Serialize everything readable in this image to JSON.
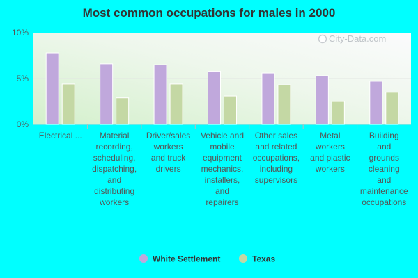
{
  "chart_data": {
    "type": "bar",
    "title": "Most common occupations for males in 2000",
    "categories": [
      "Electrical ...",
      "Material recording, scheduling, dispatching, and distributing workers",
      "Driver/sales workers and truck drivers",
      "Vehicle and mobile equipment mechanics, installers, and repairers",
      "Other sales and related occupations, including supervisors",
      "Metal workers and plastic workers",
      "Building and grounds cleaning and maintenance occupations"
    ],
    "category_lines": [
      [
        "Electrical ..."
      ],
      [
        "Material",
        "recording,",
        "scheduling,",
        "dispatching,",
        "and",
        "distributing",
        "workers"
      ],
      [
        "Driver/sales",
        "workers",
        "and truck",
        "drivers"
      ],
      [
        "Vehicle and",
        "mobile",
        "equipment",
        "mechanics,",
        "installers,",
        "and",
        "repairers"
      ],
      [
        "Other sales",
        "and related",
        "occupations,",
        "including",
        "supervisors"
      ],
      [
        "Metal",
        "workers",
        "and plastic",
        "workers"
      ],
      [
        "Building",
        "and",
        "grounds",
        "cleaning",
        "and",
        "maintenance",
        "occupations"
      ]
    ],
    "series": [
      {
        "name": "White Settlement",
        "color": "#c0a8dc",
        "values": [
          7.8,
          6.6,
          6.5,
          5.8,
          5.6,
          5.3,
          4.7
        ]
      },
      {
        "name": "Texas",
        "color": "#c4d8a4",
        "values": [
          4.4,
          2.9,
          4.4,
          3.1,
          4.3,
          2.5,
          3.5
        ]
      }
    ],
    "yticks": [
      {
        "value": 0,
        "label": "0%"
      },
      {
        "value": 5,
        "label": "5%"
      },
      {
        "value": 10,
        "label": "10%"
      }
    ],
    "ylim": [
      0,
      10
    ],
    "xlabel": "",
    "ylabel": "",
    "grid": true,
    "legend_position": "bottom-center",
    "watermark": "City-Data.com"
  }
}
